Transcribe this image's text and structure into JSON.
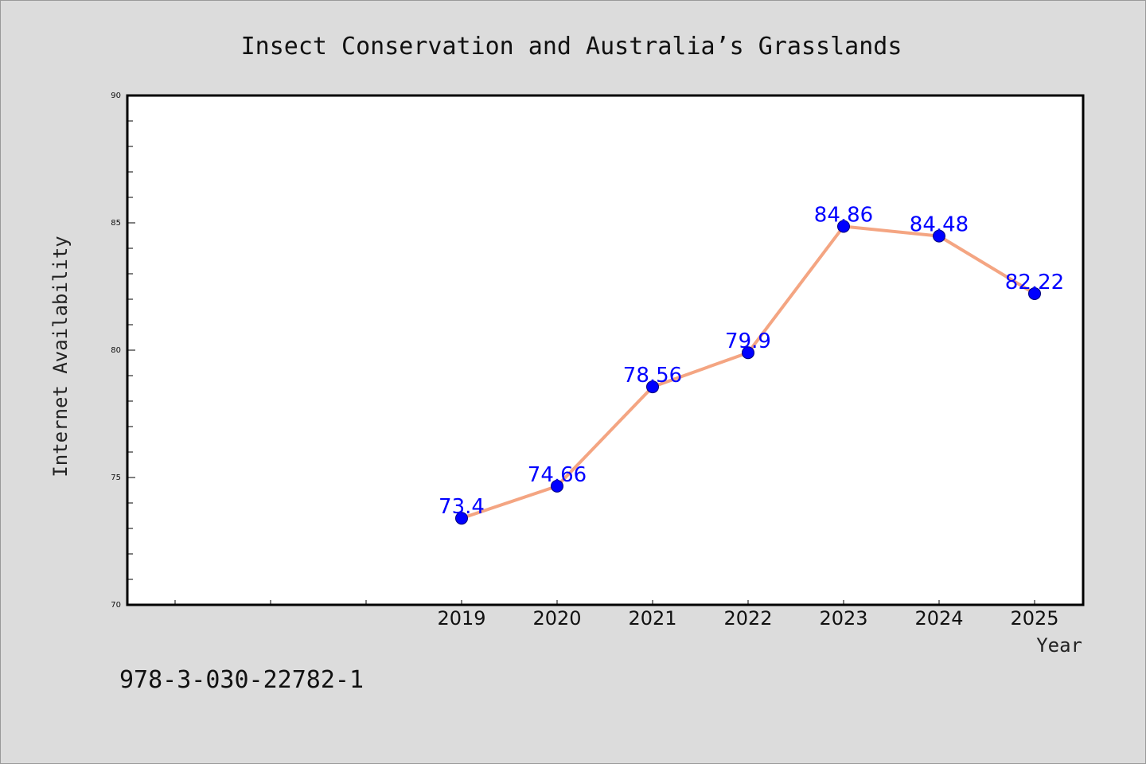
{
  "chart_data": {
    "type": "line",
    "title": "Insect Conservation and Australia’s Grasslands",
    "xlabel": "Year",
    "ylabel": "Internet Availability",
    "categories": [
      "2019",
      "2020",
      "2021",
      "2022",
      "2023",
      "2024",
      "2025"
    ],
    "values": [
      73.4,
      74.66,
      78.56,
      79.9,
      84.86,
      84.48,
      82.22
    ],
    "data_labels": [
      "73.4",
      "74.66",
      "78.56",
      "79.9",
      "84.86",
      "84.48",
      "82.22"
    ],
    "ylim": [
      70,
      90
    ],
    "yticks": [
      "70",
      "75",
      "80",
      "85",
      "90"
    ],
    "grid": false,
    "legend": "none",
    "line_color": "#f4a582",
    "marker_color": "#0000ff",
    "label_color": "#0000ff"
  },
  "footer": {
    "code": "978-3-030-22782-1"
  }
}
